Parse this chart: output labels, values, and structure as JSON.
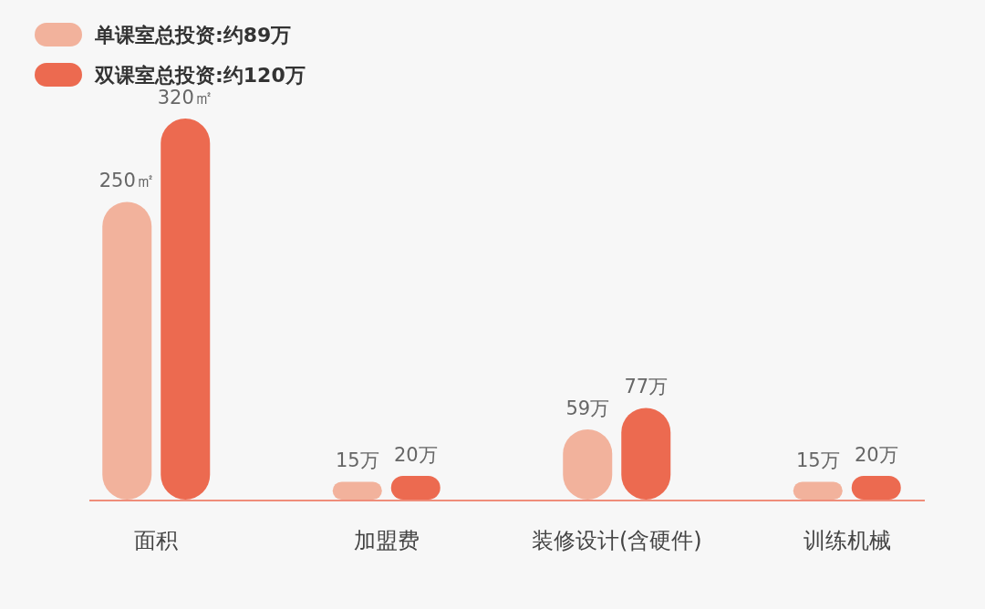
{
  "chart_data": {
    "type": "bar",
    "categories": [
      "面积",
      "加盟费",
      "装修设计(含硬件)",
      "训练机械"
    ],
    "series": [
      {
        "name": "单课室总投资:约89万",
        "color": "#f2b29c",
        "values": [
          250,
          15,
          59,
          15
        ],
        "value_labels": [
          "250㎡",
          "15万",
          "59万",
          "15万"
        ]
      },
      {
        "name": "双课室总投资:约120万",
        "color": "#ec6a50",
        "values": [
          320,
          20,
          77,
          20
        ],
        "value_labels": [
          "320㎡",
          "20万",
          "77万",
          "20万"
        ]
      }
    ],
    "relative": false,
    "legend": "top left"
  }
}
